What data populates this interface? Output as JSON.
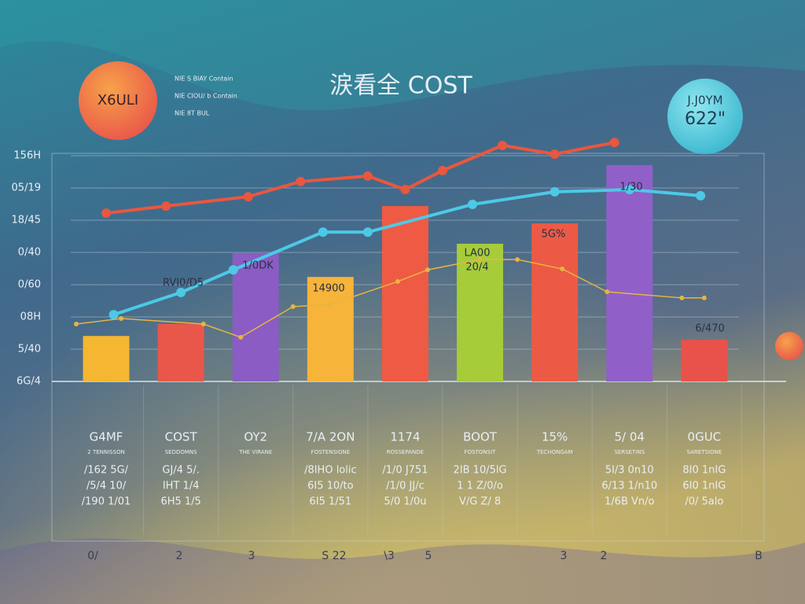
{
  "chart_data": {
    "type": "bar",
    "title": "涙看全 COST",
    "badge_left": "X6ULI",
    "badge_right": [
      "J.J0YM",
      "622\""
    ],
    "legend_text": [
      "NIE  S  BIAY  Contain",
      "NIE  CIOU/ b  Contain",
      "NIE  8T  BUL"
    ],
    "categories": [
      "G4MF",
      "COST",
      "OY2",
      "7/A 2ON",
      "1174",
      "BOOT",
      "15%",
      "5/ 04",
      "0GUC"
    ],
    "values": [
      1.41,
      1.78,
      3.98,
      3.24,
      5.44,
      4.27,
      4.9,
      6.71,
      1.29
    ],
    "colors": [
      "#f5b731",
      "#e9574a",
      "#8a5cc4",
      "#f6b43a",
      "#ef5a44",
      "#a6cc3a",
      "#ec5a45",
      "#9060c8",
      "#e8524a"
    ],
    "annotations": [
      "RVI0/D5",
      "1/0DK",
      "14900",
      "LA00",
      "20/4",
      "5G%",
      "1/30",
      "6/470"
    ],
    "category_notes": [
      [
        "2 TENNISSON",
        "/162 5G/",
        "/5/4 10/",
        "/190 1/01"
      ],
      [
        "SEDDOMNS",
        "GJ/4  5/.",
        "IHT  1/4",
        "6H5  1/5"
      ],
      [
        "THE VIRANE"
      ],
      [
        "FOSTENSIONE",
        "/8IHO  lolic",
        "6I5  10/to",
        "6I5  1/51"
      ],
      [
        "ROSSEPANDE",
        "/1/0  J751",
        "/1/0  JJ/c",
        "5/0  1/0u"
      ],
      [
        "FOSTONSIT",
        "2IB  10/5lG",
        "1 1  Z/0/o",
        "V/G  Z/ 8"
      ],
      [
        "TECHONGAM"
      ],
      [
        "SERSETINS",
        "5I/3  0n10",
        "6/13  1/n10",
        "1/6B  Vn/o"
      ],
      [
        "SARETSIONE",
        "8I0  1nIG",
        "6I0  1nIG",
        "/0/  5alo"
      ]
    ],
    "footer_labels": [
      "0/",
      "2",
      "3",
      "S  22",
      "\\3",
      "5",
      "3",
      "2",
      "B"
    ],
    "series": [
      {
        "name": "red",
        "color": "#e8573f",
        "width": 4,
        "x": [
          0,
          0.8,
          1.9,
          2.6,
          3.5,
          4,
          4.5,
          5.3,
          6,
          6.8
        ],
        "values": [
          5.22,
          5.44,
          5.73,
          6.2,
          6.37,
          5.95,
          6.54,
          7.32,
          7.05,
          7.41
        ]
      },
      {
        "name": "cyan",
        "color": "#4cc9e6",
        "width": 4,
        "x": [
          0.1,
          1,
          1.7,
          2.9,
          3.5,
          4.9,
          6,
          7,
          7.95
        ],
        "values": [
          2.07,
          2.76,
          3.46,
          4.63,
          4.63,
          5.49,
          5.88,
          5.95,
          5.76
        ]
      },
      {
        "name": "gold",
        "color": "#e7b540",
        "width": 1.5,
        "x": [
          -0.4,
          0.2,
          1.3,
          1.8,
          2.5,
          3,
          3.9,
          4.3,
          5,
          5.5,
          6.1,
          6.7,
          7.7,
          8
        ],
        "values": [
          1.78,
          1.95,
          1.78,
          1.37,
          2.32,
          2.39,
          3.1,
          3.46,
          3.78,
          3.78,
          3.49,
          2.78,
          2.59,
          2.59
        ]
      }
    ],
    "xlim": [
      -0.5,
      8.5
    ],
    "ylim": [
      0,
      7.5
    ],
    "yticks": [
      {
        "value": 0,
        "label": "6G/4"
      },
      {
        "value": 1,
        "label": "5/40"
      },
      {
        "value": 2,
        "label": "08H"
      },
      {
        "value": 3,
        "label": "0/60"
      },
      {
        "value": 4,
        "label": "0/40"
      },
      {
        "value": 5,
        "label": "18/45"
      },
      {
        "value": 6,
        "label": "05/19"
      },
      {
        "value": 7,
        "label": "156H"
      }
    ],
    "grid": true
  }
}
